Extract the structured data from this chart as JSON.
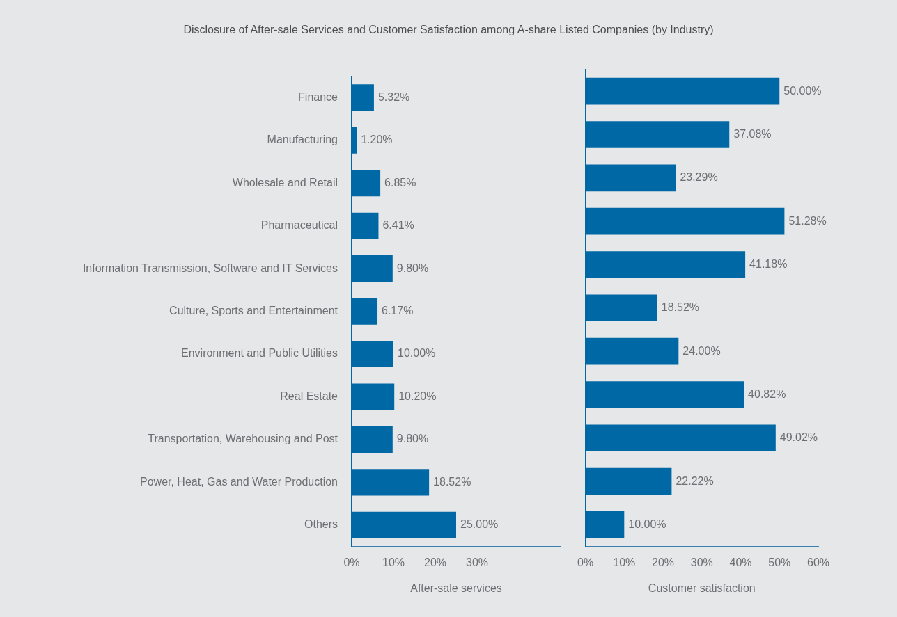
{
  "chart_data": [
    {
      "type": "bar",
      "orientation": "horizontal",
      "title": "Disclosure of After-sale Services and Customer Satisfaction among A-share Listed Companies (by Industry)",
      "xlabel": "After-sale services",
      "categories": [
        "Finance",
        "Manufacturing",
        "Wholesale and Retail",
        "Pharmaceutical",
        "Information Transmission, Software and IT Services",
        "Culture, Sports and Entertainment",
        "Environment and Public Utilities",
        "Real Estate",
        "Transportation, Warehousing and Post",
        "Power, Heat, Gas and Water Production",
        "Others"
      ],
      "values": [
        5.32,
        1.2,
        6.85,
        6.41,
        9.8,
        6.17,
        10.0,
        10.2,
        9.8,
        18.52,
        25.0
      ],
      "value_labels": [
        "5.32%",
        "1.20%",
        "6.85%",
        "6.41%",
        "9.80%",
        "6.17%",
        "10.00%",
        "10.20%",
        "9.80%",
        "18.52%",
        "25.00%"
      ],
      "color": "#0068a5",
      "xlim": [
        0,
        50
      ],
      "xticks": [
        {
          "value": 0,
          "label": "0%"
        },
        {
          "value": 10,
          "label": "10%"
        },
        {
          "value": 20,
          "label": "20%"
        },
        {
          "value": 30,
          "label": "30%"
        }
      ],
      "grid": false,
      "legend": false
    },
    {
      "type": "bar",
      "orientation": "horizontal",
      "xlabel": "Customer satisfaction",
      "categories": [
        null,
        null,
        null,
        null,
        null,
        null,
        null,
        null,
        null,
        null,
        null
      ],
      "values": [
        50.0,
        37.08,
        23.29,
        51.28,
        41.18,
        18.52,
        24.0,
        40.82,
        49.02,
        22.22,
        10.0
      ],
      "value_labels": [
        "50.00%",
        "37.08%",
        "23.29%",
        "51.28%",
        "41.18%",
        "18.52%",
        "24.00%",
        "40.82%",
        "49.02%",
        "22.22%",
        "10.00%"
      ],
      "color": "#0068a5",
      "xlim": [
        0,
        60
      ],
      "xticks": [
        {
          "value": 0,
          "label": "0%"
        },
        {
          "value": 10,
          "label": "10%"
        },
        {
          "value": 20,
          "label": "20%"
        },
        {
          "value": 30,
          "label": "30%"
        },
        {
          "value": 40,
          "label": "40%"
        },
        {
          "value": 50,
          "label": "50%"
        },
        {
          "value": 60,
          "label": "60%"
        }
      ],
      "grid": false,
      "legend": false,
      "tick_labels": "x"
    }
  ]
}
